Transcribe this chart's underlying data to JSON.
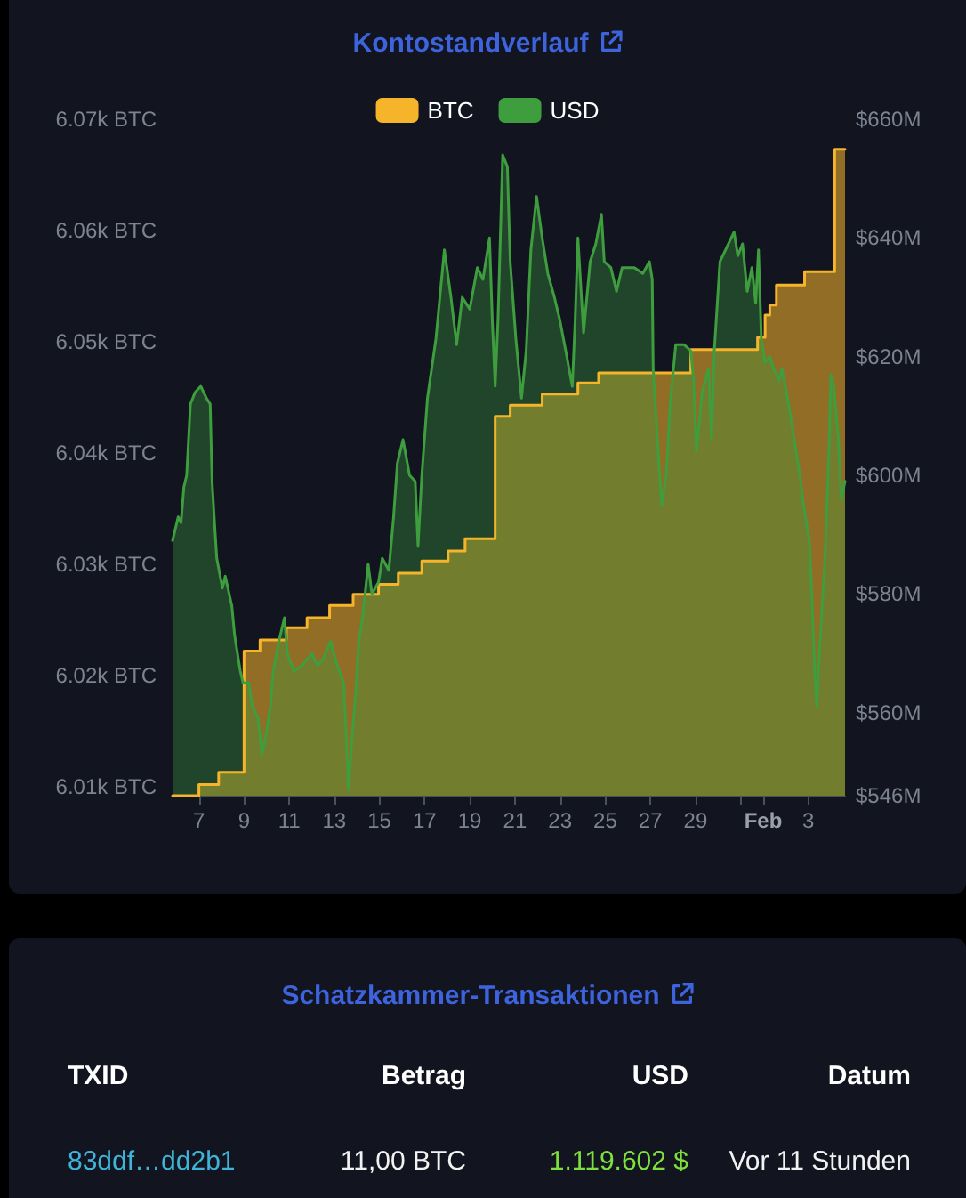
{
  "chart_data": [
    {
      "type": "area",
      "title": "Kontostandverlauf",
      "legend": "top",
      "xlim": [
        "--01-05T20:00",
        "--02-04T15:00"
      ],
      "xticks": [
        {
          "value": "--01-07",
          "label": "7"
        },
        {
          "value": "--01-09",
          "label": "9"
        },
        {
          "value": "--01-11",
          "label": "11"
        },
        {
          "value": "--01-13",
          "label": "13"
        },
        {
          "value": "--01-15",
          "label": "15"
        },
        {
          "value": "--01-17",
          "label": "17"
        },
        {
          "value": "--01-19",
          "label": "19"
        },
        {
          "value": "--01-21",
          "label": "21"
        },
        {
          "value": "--01-23",
          "label": "23"
        },
        {
          "value": "--01-25",
          "label": "25"
        },
        {
          "value": "--01-27",
          "label": "27"
        },
        {
          "value": "--01-29",
          "label": "29"
        },
        {
          "value": "--01-31",
          "label": null
        },
        {
          "value": "--02-01",
          "label": "Feb"
        },
        {
          "value": "--02-03",
          "label": "3"
        }
      ],
      "ylim": [
        6009.2,
        6070
      ],
      "yticks": [
        {
          "value": 6010,
          "label": "6.01k BTC"
        },
        {
          "value": 6020,
          "label": "6.02k BTC"
        },
        {
          "value": 6030,
          "label": "6.03k BTC"
        },
        {
          "value": 6040,
          "label": "6.04k BTC"
        },
        {
          "value": 6050,
          "label": "6.05k BTC"
        },
        {
          "value": 6060,
          "label": "6.06k BTC"
        },
        {
          "value": 6070,
          "label": "6.07k BTC"
        }
      ],
      "y2lim": [
        546,
        660
      ],
      "y2ticks": [
        {
          "value": 546,
          "label": "$546M"
        },
        {
          "value": 560,
          "label": "$560M"
        },
        {
          "value": 580,
          "label": "$580M"
        },
        {
          "value": 600,
          "label": "$600M"
        },
        {
          "value": 620,
          "label": "$620M"
        },
        {
          "value": 640,
          "label": "$640M"
        },
        {
          "value": 660,
          "label": "$660M"
        }
      ],
      "series": [
        {
          "name": "BTC",
          "type": "step",
          "color": "#f6b42a",
          "x": [
            "--01-05T20:00",
            "--01-07T00:00",
            "--01-07T21:00",
            "--01-09T00:00",
            "--01-09T17:00",
            "--01-10T21:00",
            "--01-11T19:00",
            "--01-12T19:00",
            "--01-13T20:00",
            "--01-14T23:00",
            "--01-15T20:00",
            "--01-16T21:00",
            "--01-18T01:00",
            "--01-18T19:00",
            "--01-20T03:00",
            "--01-20T19:00",
            "--01-22T05:00",
            "--01-23T19:00",
            "--01-24T17:00",
            "--01-28T19:00",
            "--01-31T18:00",
            "--02-01T02:00",
            "--02-01T07:00",
            "--02-01T14:00",
            "--02-02T20:00",
            "--02-04T04:00",
            "--02-04T15:00"
          ],
          "values": [
            6009.2,
            6010.2,
            6011.3,
            6022.2,
            6023.2,
            6024.3,
            6025.2,
            6026.3,
            6027.3,
            6028.2,
            6029.2,
            6030.3,
            6031.2,
            6032.3,
            6043.3,
            6044.3,
            6045.3,
            6046.3,
            6047.2,
            6049.3,
            6050.4,
            6052.4,
            6053.3,
            6055.1,
            6056.3,
            6067.3,
            6067.3
          ]
        },
        {
          "name": "USD",
          "axis": "y2",
          "color": "#3e9e3e",
          "x": [
            "--01-05T20:00",
            "--01-06T02:00",
            "--01-06T05:00",
            "--01-06T08:00",
            "--01-06T11:00",
            "--01-06T15:00",
            "--01-06T20:00",
            "--01-07T02:00",
            "--01-07T08:00",
            "--01-07T12:00",
            "--01-07T14:00",
            "--01-07T17:00",
            "--01-07T19:00",
            "--01-08T01:00",
            "--01-08T04:00",
            "--01-08T11:00",
            "--01-08T14:00",
            "--01-08T20:00",
            "--01-08T23:00",
            "--01-09T05:00",
            "--01-09T09:00",
            "--01-09T15:00",
            "--01-09T19:00",
            "--01-09T23:00",
            "--01-10T04:00",
            "--01-10T07:00",
            "--01-10T13:00",
            "--01-10T19:00",
            "--01-10T22:00",
            "--01-11T05:00",
            "--01-11T14:00",
            "--01-12T00:00",
            "--01-12T06:00",
            "--01-12T12:00",
            "--01-12T20:00",
            "--01-13T03:00",
            "--01-13T10:00",
            "--01-13T13:00",
            "--01-13T15:00",
            "--01-13T18:00",
            "--01-13T23:00",
            "--01-14T02:00",
            "--01-14T06:00",
            "--01-14T12:00",
            "--01-14T16:00",
            "--01-14T23:00",
            "--01-15T03:00",
            "--01-15T10:00",
            "--01-15T15:00",
            "--01-15T19:00",
            "--01-16T01:00",
            "--01-16T08:00",
            "--01-16T14:00",
            "--01-16T17:00",
            "--01-16T21:00",
            "--01-17T03:00",
            "--01-17T12:00",
            "--01-17T21:00",
            "--01-18T04:00",
            "--01-18T10:00",
            "--01-18T16:00",
            "--01-19T00:00",
            "--01-19T08:00",
            "--01-19T14:00",
            "--01-19T21:00",
            "--01-20T00:00",
            "--01-20T03:00",
            "--01-20T06:00",
            "--01-20T11:00",
            "--01-20T16:00",
            "--01-20T19:00",
            "--01-21T01:00",
            "--01-21T07:00",
            "--01-21T12:00",
            "--01-21T17:00",
            "--01-21T23:00",
            "--01-22T05:00",
            "--01-22T11:00",
            "--01-22T18:00",
            "--01-23T00:00",
            "--01-23T06:00",
            "--01-23T13:00",
            "--01-23T16:00",
            "--01-23T19:00",
            "--01-24T01:00",
            "--01-24T08:00",
            "--01-24T14:00",
            "--01-24T20:00",
            "--01-24T23:00",
            "--01-25T06:00",
            "--01-25T12:00",
            "--01-25T18:00",
            "--01-26T07:00",
            "--01-26T16:00",
            "--01-26T23:00",
            "--01-27T02:00",
            "--01-27T03:00",
            "--01-27T08:00",
            "--01-27T12:00",
            "--01-27T17:00",
            "--01-27T21:00",
            "--01-28T03:00",
            "--01-28T12:00",
            "--01-28T19:00",
            "--01-28T22:00",
            "--01-29T01:00",
            "--01-29T07:00",
            "--01-29T14:00",
            "--01-29T17:00",
            "--01-29T20:00",
            "--01-30T02:00",
            "--01-30T08:00",
            "--01-30T17:00",
            "--01-30T21:00",
            "--01-31T02:00",
            "--01-31T07:00",
            "--01-31T12:00",
            "--01-31T16:00",
            "--01-31T19:00",
            "--01-31T22:00",
            "--02-01T02:00",
            "--02-01T07:00",
            "--02-01T11:00",
            "--02-01T17:00",
            "--02-01T20:00",
            "--02-02T03:00",
            "--02-02T09:00",
            "--02-02T15:00",
            "--02-02T18:00",
            "--02-03T01:00",
            "--02-03T04:00",
            "--02-03T07:00",
            "--02-03T09:00",
            "--02-03T12:00",
            "--02-03T15:00",
            "--02-03T18:00",
            "--02-03T22:00",
            "--02-04T00:00",
            "--02-04T03:00",
            "--02-04T08:00",
            "--02-04T11:00",
            "--02-04T15:00"
          ],
          "values": [
            589,
            593,
            592,
            598,
            600,
            612,
            614,
            615,
            613,
            612,
            599,
            591,
            586,
            581,
            583,
            578,
            573,
            567,
            565,
            565,
            561,
            559,
            553,
            556,
            561,
            567,
            572,
            576,
            570,
            567,
            568,
            570,
            568,
            569,
            572,
            568,
            565,
            555,
            547,
            554,
            564,
            572,
            576,
            585,
            580,
            582,
            586,
            584,
            593,
            602,
            606,
            600,
            599,
            588,
            600,
            613,
            623,
            638,
            630,
            622,
            630,
            628,
            635,
            633,
            640,
            626,
            615,
            626,
            654,
            652,
            636,
            623,
            613,
            621,
            638,
            647,
            640,
            634,
            630,
            626,
            621,
            615,
            626,
            640,
            624,
            636,
            639,
            644,
            636,
            635,
            631,
            635,
            635,
            634,
            636,
            633,
            618,
            605,
            595,
            600,
            612,
            622,
            622,
            621,
            616,
            604,
            614,
            618,
            606,
            621,
            636,
            638,
            641,
            637,
            639,
            631,
            635,
            629,
            638,
            623,
            619,
            620,
            618,
            616,
            618,
            612,
            606,
            600,
            596,
            589,
            579,
            566,
            561,
            571,
            579,
            587,
            605,
            617,
            615,
            606,
            596,
            599
          ]
        }
      ]
    },
    {
      "type": "other",
      "title": "Schatzkammer-Transaktionen",
      "categories": [
        "TXID",
        "Betrag",
        "USD",
        "Datum"
      ],
      "annotations": [
        "83ddf…dd2b1",
        "11,00 BTC",
        "1.119.602 $",
        "Vor 11 Stunden"
      ]
    }
  ]
}
